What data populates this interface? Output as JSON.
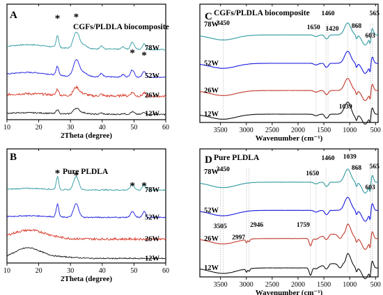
{
  "chart_data": [
    {
      "panel": "A",
      "type": "line",
      "title": "CGFs/PLDLA biocomposite",
      "xlabel": "2Theta (degree)",
      "ylabel": "",
      "xlim": [
        10,
        60
      ],
      "xticks": [
        "10",
        "20",
        "30",
        "40",
        "50",
        "60"
      ],
      "series": [
        {
          "name": "78W",
          "color": "#2f9aa0"
        },
        {
          "name": "52W",
          "color": "#1a1ae0"
        },
        {
          "name": "26W",
          "color": "#d83020"
        },
        {
          "name": "12W",
          "color": "#111111"
        }
      ],
      "peaks_2theta": [
        25.9,
        31.8,
        49.5,
        53.2
      ],
      "peak_markers": [
        "*",
        "*",
        "*",
        "*"
      ]
    },
    {
      "panel": "B",
      "type": "line",
      "title": "Pure PLDLA",
      "xlabel": "2Theta (degree)",
      "ylabel": "",
      "xlim": [
        10,
        60
      ],
      "xticks": [
        "10",
        "20",
        "30",
        "40",
        "50",
        "60"
      ],
      "series": [
        {
          "name": "78W",
          "color": "#2f9aa0"
        },
        {
          "name": "52W",
          "color": "#1a1ae0"
        },
        {
          "name": "26W",
          "color": "#d83020"
        },
        {
          "name": "12W",
          "color": "#111111"
        }
      ],
      "peaks_2theta": [
        25.9,
        31.8,
        49.5,
        53.2
      ],
      "peak_markers": [
        "*",
        "*",
        "*",
        "*"
      ]
    },
    {
      "panel": "C",
      "type": "line",
      "title": "CGFs/PLDLA biocomposite",
      "xlabel": "Wavenumber (cm⁻¹)",
      "ylabel": "",
      "xlim": [
        3900,
        450
      ],
      "xticks": [
        "3500",
        "3000",
        "2500",
        "2000",
        "1500",
        "1000",
        "500"
      ],
      "series": [
        {
          "name": "78W",
          "color": "#2f9aa0"
        },
        {
          "name": "52W",
          "color": "#1a1ae0"
        },
        {
          "name": "26W",
          "color": "#c0392b"
        },
        {
          "name": "12W",
          "color": "#111111"
        }
      ],
      "annotations": [
        "3450",
        "1650",
        "1460",
        "1420",
        "868",
        "603",
        "565",
        "1039"
      ]
    },
    {
      "panel": "D",
      "type": "line",
      "title": "Pure PLDLA",
      "xlabel": "Wavenumber (cm⁻¹)",
      "ylabel": "",
      "xlim": [
        3900,
        450
      ],
      "xticks": [
        "3500",
        "3000",
        "2500",
        "2000",
        "1500",
        "1000",
        "500"
      ],
      "series": [
        {
          "name": "78W",
          "color": "#2f9aa0"
        },
        {
          "name": "52W",
          "color": "#1a1ae0"
        },
        {
          "name": "26W",
          "color": "#c0392b"
        },
        {
          "name": "12W",
          "color": "#111111"
        }
      ],
      "annotations": [
        "3450",
        "1650",
        "1460",
        "1039",
        "868",
        "565",
        "603",
        "3505",
        "2946",
        "2997",
        "1759"
      ]
    }
  ]
}
